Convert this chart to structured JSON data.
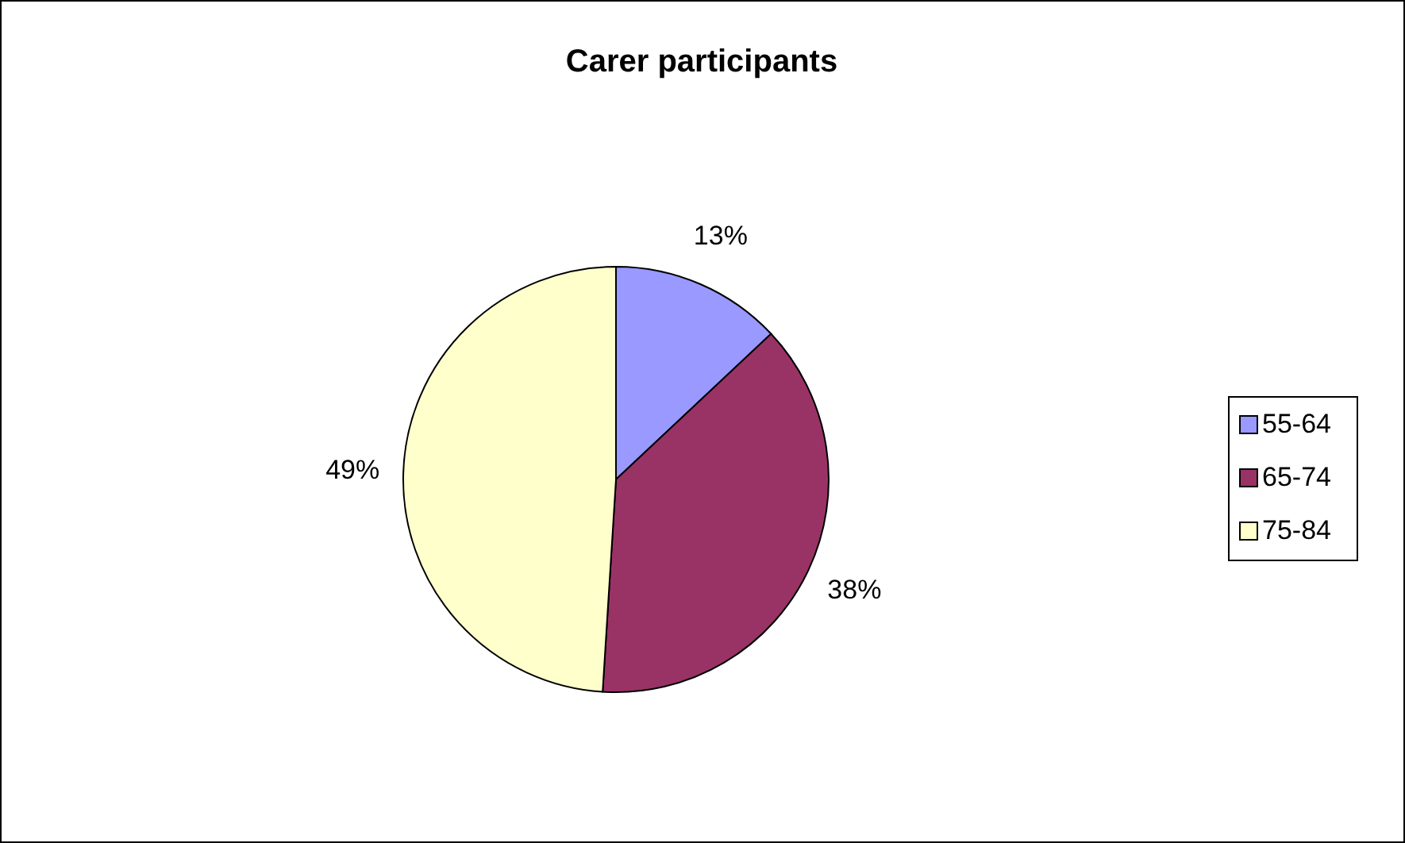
{
  "chart_data": {
    "type": "pie",
    "title": "Carer participants",
    "categories": [
      "55-64",
      "65-74",
      "75-84"
    ],
    "values": [
      13,
      38,
      49
    ],
    "colors": [
      "#9999ff",
      "#993366",
      "#ffffcc"
    ],
    "value_labels": [
      "13%",
      "38%",
      "49%"
    ],
    "legend": "right"
  }
}
